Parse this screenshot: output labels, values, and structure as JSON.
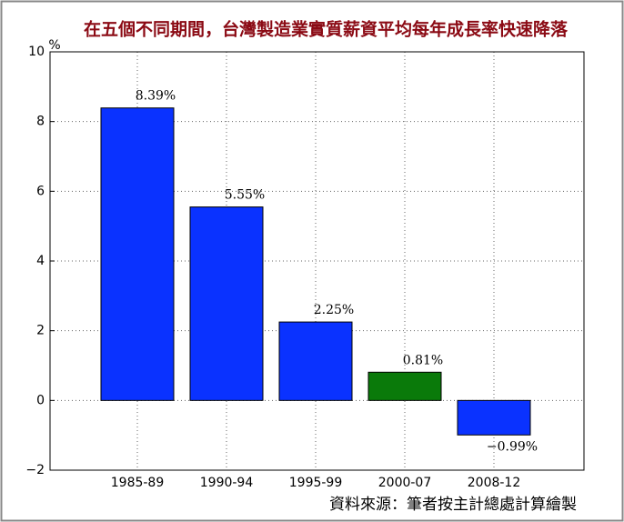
{
  "chart_data": {
    "type": "bar",
    "title": "在五個不同期間，台灣製造業實質薪資平均每年成長率快速降落",
    "y_label": "%",
    "categories": [
      "1985-89",
      "1990-94",
      "1995-99",
      "2000-07",
      "2008-12"
    ],
    "values": [
      8.39,
      5.55,
      2.25,
      0.81,
      -0.99
    ],
    "value_labels": [
      "8.39%",
      "5.55%",
      "2.25%",
      "0.81%",
      "−0.99%"
    ],
    "colors": [
      "#0a32ff",
      "#0a32ff",
      "#0a32ff",
      "#0a7a0a",
      "#0a32ff"
    ],
    "ylim": [
      -2,
      10
    ],
    "yticks": [
      {
        "value": -2,
        "label": "−2"
      },
      0,
      2,
      4,
      6,
      8,
      10
    ],
    "grid": true,
    "source": "資料來源：筆者按主計總處計算繪製"
  }
}
